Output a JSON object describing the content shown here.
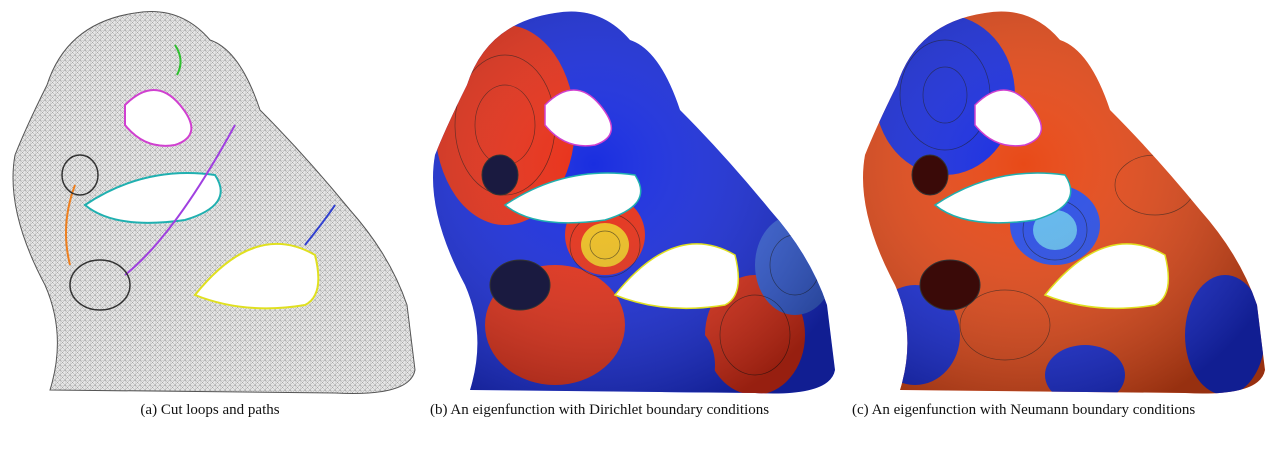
{
  "figure": {
    "panels": [
      {
        "caption": "(a) Cut loops and paths"
      },
      {
        "caption": "(b) An eigenfunction with Dirichlet boundary conditions"
      },
      {
        "caption": "(c) An eigenfunction with Neumann boundary conditions"
      }
    ]
  }
}
